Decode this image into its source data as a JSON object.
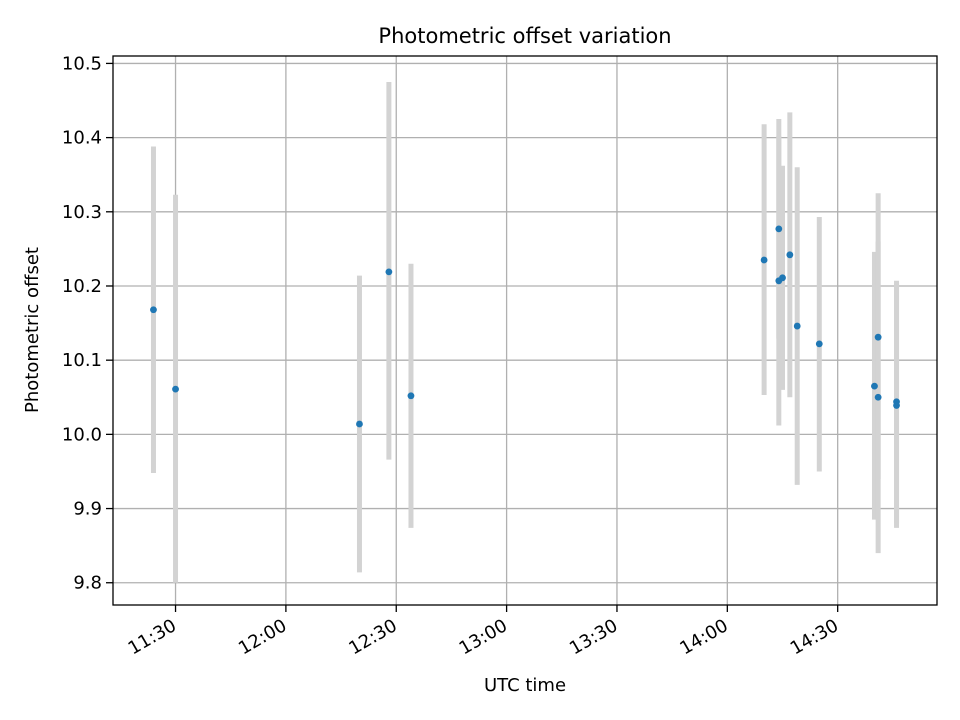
{
  "chart_data": {
    "type": "scatter",
    "title": "Photometric offset variation",
    "xlabel": "UTC time",
    "ylabel": "Photometric offset",
    "xlim": [
      "11:13",
      "14:57"
    ],
    "ylim": [
      9.77,
      10.51
    ],
    "x_ticks": [
      "11:30",
      "12:00",
      "12:30",
      "13:00",
      "13:30",
      "14:00",
      "14:30"
    ],
    "y_ticks": [
      "9.8",
      "9.9",
      "10.0",
      "10.1",
      "10.2",
      "10.3",
      "10.4",
      "10.5"
    ],
    "grid": true,
    "legend": "none",
    "point_color": "#1f77b4",
    "errorbar_color": "#d3d3d3",
    "series": [
      {
        "points": [
          {
            "x": "11:24",
            "y": 10.168,
            "ylow": 9.948,
            "yhigh": 10.388
          },
          {
            "x": "11:30",
            "y": 10.061,
            "ylow": 9.8,
            "yhigh": 10.323
          },
          {
            "x": "12:20",
            "y": 10.014,
            "ylow": 9.814,
            "yhigh": 10.214
          },
          {
            "x": "12:28",
            "y": 10.219,
            "ylow": 9.966,
            "yhigh": 10.475
          },
          {
            "x": "12:34",
            "y": 10.052,
            "ylow": 9.874,
            "yhigh": 10.23
          },
          {
            "x": "14:10",
            "y": 10.235,
            "ylow": 10.053,
            "yhigh": 10.418
          },
          {
            "x": "14:14",
            "y": 10.277,
            "ylow": 10.129,
            "yhigh": 10.425
          },
          {
            "x": "14:14",
            "y": 10.207,
            "ylow": 10.012,
            "yhigh": 10.402
          },
          {
            "x": "14:15",
            "y": 10.211,
            "ylow": 10.06,
            "yhigh": 10.362
          },
          {
            "x": "14:17",
            "y": 10.242,
            "ylow": 10.05,
            "yhigh": 10.434
          },
          {
            "x": "14:19",
            "y": 10.146,
            "ylow": 9.932,
            "yhigh": 10.36
          },
          {
            "x": "14:25",
            "y": 10.122,
            "ylow": 9.95,
            "yhigh": 10.293
          },
          {
            "x": "14:40",
            "y": 10.065,
            "ylow": 9.885,
            "yhigh": 10.246
          },
          {
            "x": "14:41",
            "y": 10.05,
            "ylow": 9.84,
            "yhigh": 10.26
          },
          {
            "x": "14:41",
            "y": 10.131,
            "ylow": 9.94,
            "yhigh": 10.325
          },
          {
            "x": "14:46",
            "y": 10.044,
            "ylow": 9.88,
            "yhigh": 10.207
          },
          {
            "x": "14:46",
            "y": 10.039,
            "ylow": 9.874,
            "yhigh": 10.204
          }
        ]
      }
    ]
  }
}
